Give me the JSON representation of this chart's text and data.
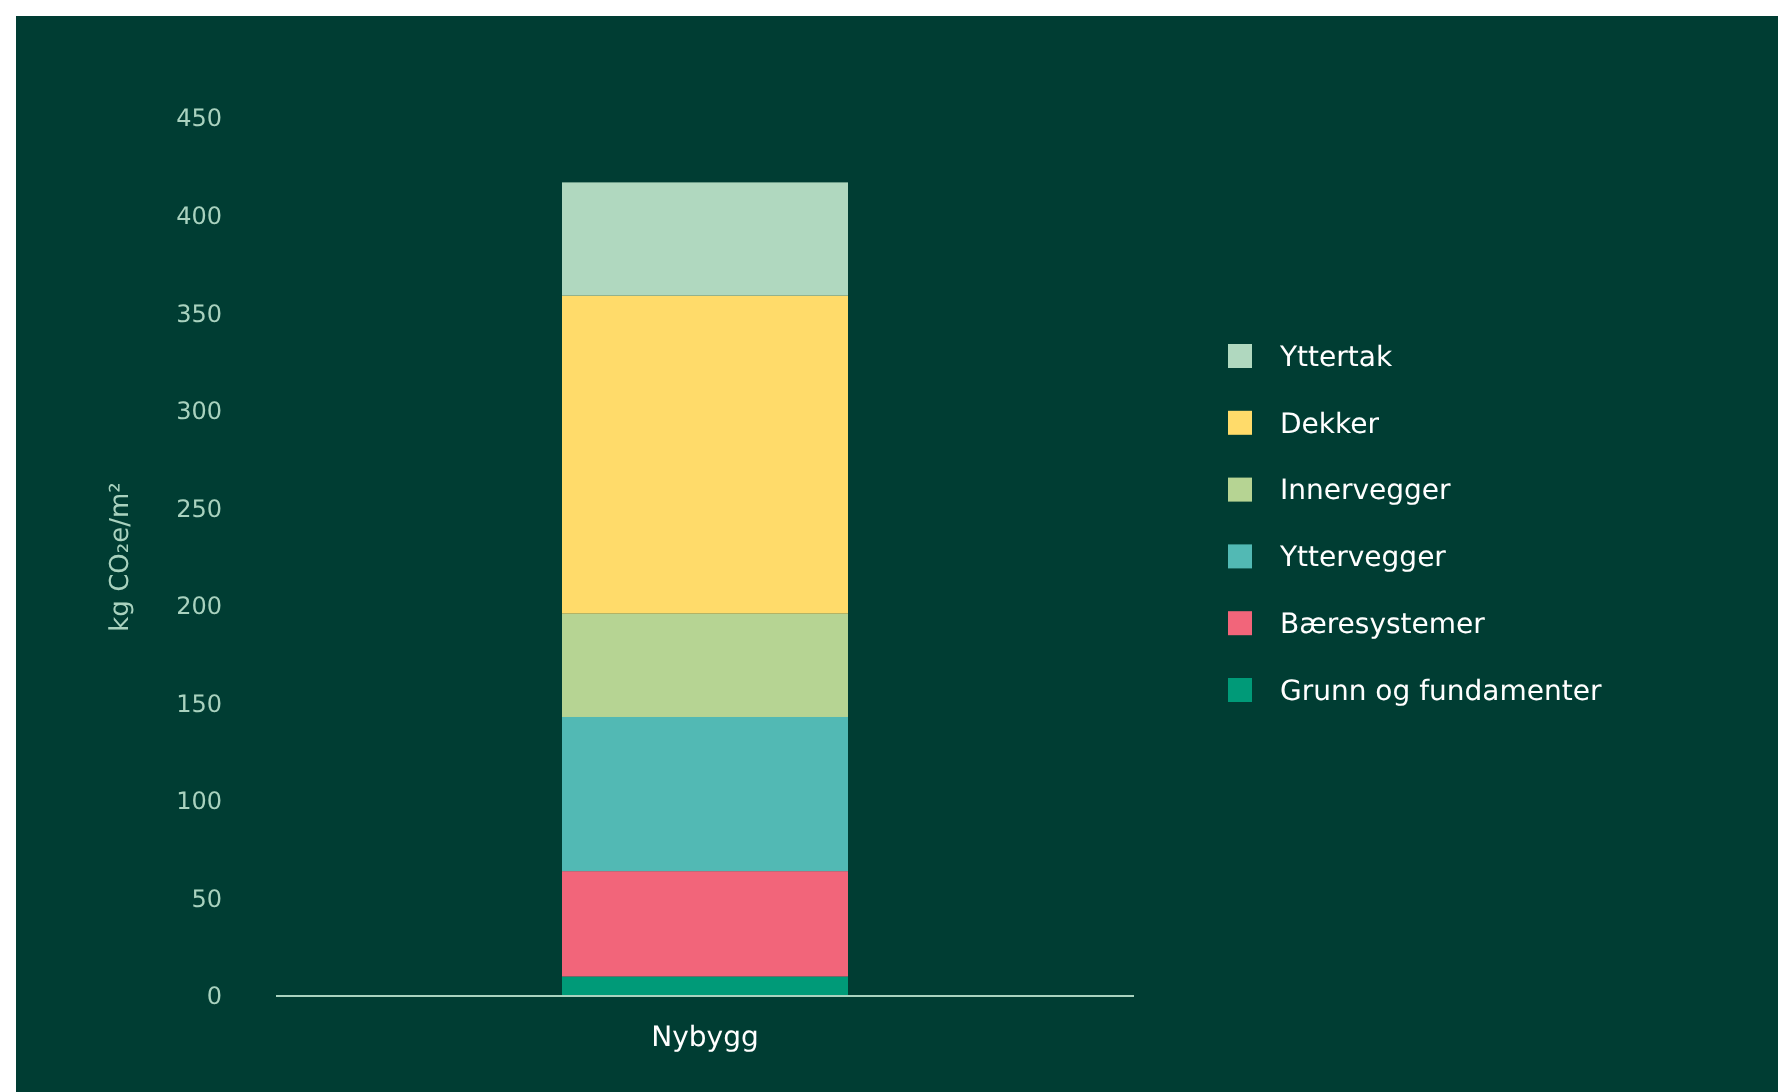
{
  "chart_data": {
    "type": "bar",
    "stacked": true,
    "categories": [
      "Nybygg"
    ],
    "ylabel": "kg CO₂e/m²",
    "ylim": [
      0,
      450
    ],
    "yticks": [
      0,
      50,
      100,
      150,
      200,
      250,
      300,
      350,
      400,
      450
    ],
    "grid": false,
    "legend": "right",
    "series": [
      {
        "name": "Grunn og fundamenter",
        "color": "#009a78",
        "values": [
          10
        ]
      },
      {
        "name": "Bæresystemer",
        "color": "#f2657a",
        "values": [
          54
        ]
      },
      {
        "name": "Yttervegger",
        "color": "#52b9b4",
        "values": [
          79
        ]
      },
      {
        "name": "Innervegger",
        "color": "#b6d493",
        "values": [
          53
        ]
      },
      {
        "name": "Dekker",
        "color": "#ffdb6a",
        "values": [
          163
        ]
      },
      {
        "name": "Yttertak",
        "color": "#b0d8bf",
        "values": [
          58
        ]
      }
    ]
  }
}
